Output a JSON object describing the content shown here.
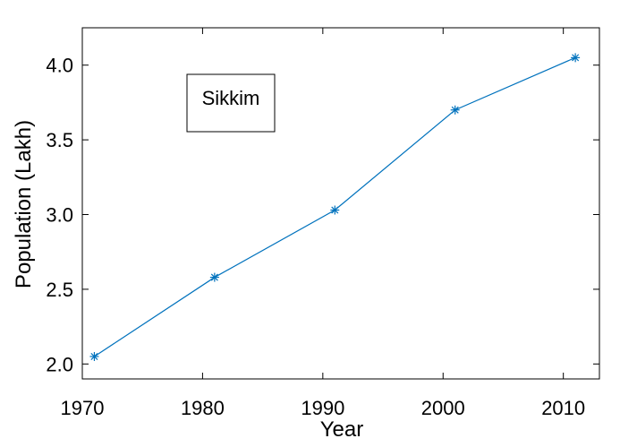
{
  "chart_data": {
    "type": "line",
    "title": "",
    "xlabel": "Year",
    "ylabel": "Population (Lakh)",
    "x": [
      1971,
      1981,
      1991,
      2001,
      2011
    ],
    "series": [
      {
        "values": [
          2.05,
          2.58,
          3.03,
          3.7,
          4.05
        ],
        "color": "#0072BD",
        "marker": "asterisk"
      }
    ],
    "xlim": [
      1970,
      2013
    ],
    "ylim": [
      1.9,
      4.25
    ],
    "xticks": [
      1970,
      1980,
      1990,
      2000,
      2010
    ],
    "yticks": [
      2.0,
      2.5,
      3.0,
      3.5,
      4.0
    ],
    "xtick_labels": [
      "1970",
      "1980",
      "1990",
      "2000",
      "2010"
    ],
    "ytick_labels": [
      "2.0",
      "2.5",
      "3.0",
      "3.5",
      "4.0"
    ],
    "annotation": "Sikkim",
    "grid": false,
    "axis_color": "#000000"
  }
}
